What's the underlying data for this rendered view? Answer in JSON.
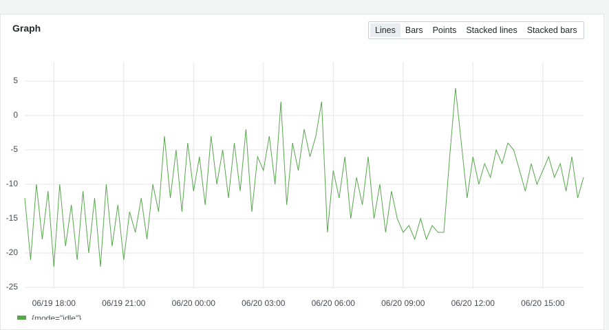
{
  "panel": {
    "title": "Graph",
    "buttons": [
      "Lines",
      "Bars",
      "Points",
      "Stacked lines",
      "Stacked bars"
    ],
    "active_button": 0
  },
  "chart_data": {
    "type": "line",
    "categories": [
      null,
      null,
      null,
      null,
      null,
      "06/19 18:00",
      null,
      null,
      null,
      null,
      null,
      null,
      null,
      null,
      null,
      null,
      null,
      "06/19 21:00",
      null,
      null,
      null,
      null,
      null,
      null,
      null,
      null,
      null,
      null,
      null,
      "06/20 00:00",
      null,
      null,
      null,
      null,
      null,
      null,
      null,
      null,
      null,
      null,
      null,
      "06/20 03:00",
      null,
      null,
      null,
      null,
      null,
      null,
      null,
      null,
      null,
      null,
      null,
      "06/20 06:00",
      null,
      null,
      null,
      null,
      null,
      null,
      null,
      null,
      null,
      null,
      null,
      "06/20 09:00",
      null,
      null,
      null,
      null,
      null,
      null,
      null,
      null,
      null,
      null,
      null,
      "06/20 12:00",
      null,
      null,
      null,
      null,
      null,
      null,
      null,
      null,
      null,
      null,
      null,
      "06/20 15:00",
      null,
      null,
      null,
      null,
      null,
      null,
      null
    ],
    "series": [
      {
        "name": "{mode=\"idle\"}",
        "color": "#56a64b",
        "values": [
          -12,
          -21,
          -10,
          -18,
          -11,
          -22,
          -10,
          -19,
          -13,
          -21,
          -11,
          -20,
          -12,
          -22,
          -10,
          -19,
          -13,
          -21,
          -14,
          -17,
          -12,
          -18,
          -10,
          -14,
          -3,
          -12,
          -5,
          -14,
          -4,
          -11,
          -6,
          -13,
          -3,
          -10,
          -5,
          -12,
          -4,
          -11,
          -2,
          -14,
          -6,
          -8,
          -3,
          -10,
          2,
          -13,
          -4,
          -8,
          -2,
          -6,
          -3,
          2,
          -17,
          -8,
          -12,
          -6,
          -15,
          -9,
          -13,
          -6,
          -15,
          -10,
          -17,
          -11,
          -15,
          -17,
          -16,
          -18,
          -15,
          -18,
          -16,
          -17,
          -17,
          -6,
          4,
          -4,
          -12,
          -6,
          -10,
          -7,
          -9,
          -5,
          -7,
          -4,
          -5,
          -8,
          -11,
          -7,
          -10,
          -8,
          -6,
          -9,
          -7,
          -11,
          -6,
          -12,
          -9
        ]
      }
    ],
    "ylim": [
      -25.2,
      7.8
    ],
    "yticks": [
      5,
      0,
      -5,
      -10,
      -15,
      -20,
      -25
    ],
    "grid": true
  }
}
